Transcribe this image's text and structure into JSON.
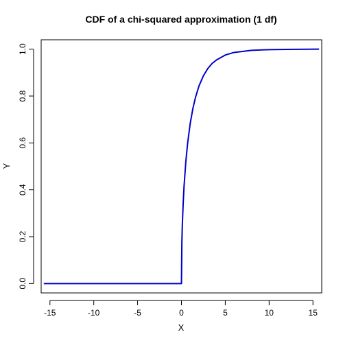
{
  "chart_data": {
    "type": "line",
    "title": "CDF of a chi-squared approximation (1 df)",
    "xlabel": "X",
    "ylabel": "Y",
    "xlim": [
      -16,
      16
    ],
    "ylim": [
      -0.04,
      1.04
    ],
    "xticks": [
      -15,
      -10,
      -5,
      0,
      5,
      10,
      15
    ],
    "yticks": [
      0.0,
      0.2,
      0.4,
      0.6,
      0.8,
      1.0
    ],
    "xtick_labels": [
      "-15",
      "-10",
      "-5",
      "0",
      "5",
      "10",
      "15"
    ],
    "ytick_labels": [
      "0.0",
      "0.2",
      "0.4",
      "0.6",
      "0.8",
      "1.0"
    ],
    "grid": false,
    "series": [
      {
        "color": "#0000cc",
        "x": [
          -15.7,
          -10,
          -5,
          -1,
          0,
          0.05,
          0.1,
          0.2,
          0.3,
          0.5,
          0.7,
          1.0,
          1.3,
          1.6,
          2.0,
          2.5,
          3.0,
          3.5,
          4.0,
          5.0,
          6.0,
          8.0,
          10.0,
          12.0,
          15.7
        ],
        "y": [
          0.0,
          0.0,
          0.0,
          0.0,
          0.0,
          0.177,
          0.248,
          0.345,
          0.416,
          0.52,
          0.597,
          0.683,
          0.746,
          0.794,
          0.843,
          0.886,
          0.917,
          0.939,
          0.954,
          0.975,
          0.986,
          0.995,
          0.998,
          0.999,
          1.0
        ]
      }
    ]
  }
}
